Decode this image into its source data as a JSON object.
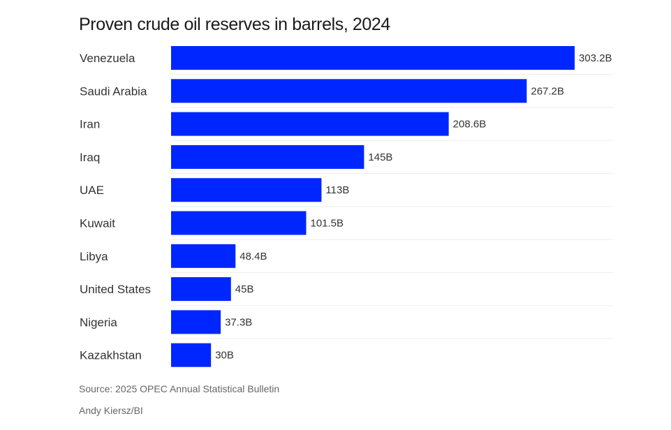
{
  "chart_data": {
    "type": "bar",
    "orientation": "horizontal",
    "title": "Proven crude oil reserves in barrels, 2024",
    "categories": [
      "Venezuela",
      "Saudi Arabia",
      "Iran",
      "Iraq",
      "UAE",
      "Kuwait",
      "Libya",
      "United States",
      "Nigeria",
      "Kazakhstan"
    ],
    "values": [
      303.2,
      267.2,
      208.6,
      145,
      113,
      101.5,
      48.4,
      45,
      37.3,
      30
    ],
    "value_labels": [
      "303.2B",
      "267.2B",
      "208.6B",
      "145B",
      "113B",
      "101.5B",
      "48.4B",
      "45B",
      "37.3B",
      "30B"
    ],
    "unit": "B",
    "xlim": [
      0,
      303.2
    ],
    "grid": false,
    "bar_color": "#0026ff"
  },
  "footer": {
    "source": "Source: 2025 OPEC Annual Statistical Bulletin",
    "credit": "Andy Kiersz/BI"
  }
}
